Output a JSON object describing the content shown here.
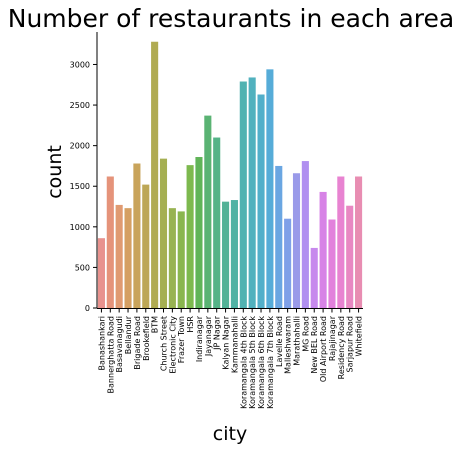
{
  "chart_data": {
    "type": "bar",
    "title": "Number of restaurants in each area",
    "xlabel": "city",
    "ylabel": "count",
    "ylim": [
      0,
      3400
    ],
    "yticks": [
      0,
      500,
      1000,
      1500,
      2000,
      2500,
      3000
    ],
    "grid": false,
    "categories": [
      "Banashankari",
      "Bannerghatta Road",
      "Basavanagudi",
      "Bellandur",
      "Brigade Road",
      "Brookefield",
      "BTM",
      "Church Street",
      "Electronic City",
      "Frazer Town",
      "HSR",
      "Indiranagar",
      "Jayanagar",
      "JP Nagar",
      "Kalyan Nagar",
      "Kammanahalli",
      "Koramangala 4th Block",
      "Koramangala 5th Block",
      "Koramangala 6th Block",
      "Koramangala 7th Block",
      "Lavelle Road",
      "Malleshwaram",
      "Marathahalli",
      "MG Road",
      "New BEL Road",
      "Old Airport Road",
      "Rajajinagar",
      "Residency Road",
      "Sarjapur Road",
      "Whitefield"
    ],
    "values": [
      860,
      1620,
      1270,
      1230,
      1780,
      1520,
      3280,
      1840,
      1230,
      1190,
      1760,
      1860,
      2370,
      2100,
      1310,
      1330,
      2790,
      2840,
      2630,
      2940,
      1750,
      1100,
      1660,
      1810,
      740,
      1430,
      1090,
      1620,
      1260,
      1620
    ],
    "colors": [
      "#e8928e",
      "#e5937a",
      "#e09a71",
      "#d59f62",
      "#c9a45b",
      "#bda756",
      "#b0ab52",
      "#a5af52",
      "#98b352",
      "#8ab64f",
      "#7db94e",
      "#60b458",
      "#5ab373",
      "#54b387",
      "#52b296",
      "#50b2a4",
      "#50b2b1",
      "#51b1be",
      "#52afca",
      "#56acd8",
      "#6aa6e2",
      "#7fa0e8",
      "#9a9ae9",
      "#b08ff0",
      "#c789ed",
      "#d783e6",
      "#e281dc",
      "#e883d1",
      "#e888c2",
      "#e88db2"
    ]
  }
}
